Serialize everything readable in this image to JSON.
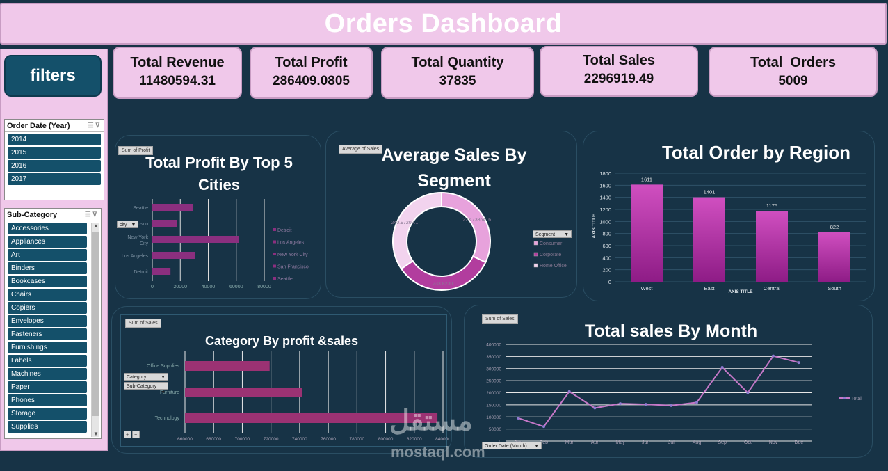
{
  "header": {
    "title": "Orders Dashboard"
  },
  "sidebar": {
    "filters_label": "filters",
    "year_slicer": {
      "title": "Order Date (Year)",
      "items": [
        "2014",
        "2015",
        "2016",
        "2017"
      ]
    },
    "subcat_slicer": {
      "title": "Sub-Category",
      "items": [
        "Accessories",
        "Appliances",
        "Art",
        "Binders",
        "Bookcases",
        "Chairs",
        "Copiers",
        "Envelopes",
        "Fasteners",
        "Furnishings",
        "Labels",
        "Machines",
        "Paper",
        "Phones",
        "Storage",
        "Supplies"
      ]
    }
  },
  "kpis": [
    {
      "label": "Total Revenue",
      "value": "11480594.31"
    },
    {
      "label": "Total Profit",
      "value": "286409.0805"
    },
    {
      "label": "Total Quantity",
      "value": "37835"
    },
    {
      "label": "Total Sales",
      "value": "2296919.49"
    },
    {
      "label": "Total  Orders",
      "value": "5009"
    }
  ],
  "panels": {
    "profit_cities": {
      "tag": "Sum of Profit",
      "title_l1": "Total Profit By Top 5",
      "title_l2": "Cities",
      "dropdown": "city"
    },
    "segment": {
      "tag": "Average of Sales",
      "title_l1": "Average Sales By",
      "title_l2": "Segment",
      "dropdown": "Segment"
    },
    "region": {
      "title": "Total Order by Region",
      "ylabel": "AXIS TITLE",
      "xlabel": "AXIS TITLE"
    },
    "category": {
      "tag": "Sum of Sales",
      "title": "Category By profit &sales",
      "dropdown1": "Category",
      "dropdown2": "Sub-Category"
    },
    "month": {
      "tag": "Sum of Sales",
      "title": "Total sales By Month",
      "dropdown": "Order Date (Month)"
    }
  },
  "chart_data": [
    {
      "type": "bar",
      "orientation": "horizontal",
      "categories": [
        "Seattle",
        "San Francisco",
        "New York City",
        "Los Angeles",
        "Detroit"
      ],
      "values": [
        29000,
        17500,
        62000,
        30500,
        13000
      ],
      "xlim": [
        0,
        80000
      ],
      "xticks": [
        "0",
        "20000",
        "40000",
        "60000",
        "80000"
      ],
      "legend": [
        "Detroit",
        "Los Angeles",
        "New York City",
        "San Francisco",
        "Seattle"
      ],
      "legend_position": "right",
      "color": "#8b2f7f"
    },
    {
      "type": "pie",
      "variant": "donut",
      "categories": [
        "Consumer",
        "Corporate",
        "Home Office"
      ],
      "values": [
        223.7336,
        233.823,
        240.9721
      ],
      "data_labels": [
        "223.7336416",
        "233.8230...",
        "240.97207..."
      ],
      "legend": [
        "Consumer",
        "Corporate",
        "Home Office"
      ],
      "legend_position": "right",
      "colors": [
        "#e7a2dc",
        "#b23d9e",
        "#f2d3ee"
      ]
    },
    {
      "type": "bar",
      "categories": [
        "West",
        "East",
        "Central",
        "South"
      ],
      "values": [
        1611,
        1401,
        1175,
        822
      ],
      "ylim": [
        0,
        1800
      ],
      "yticks": [
        "0",
        "200",
        "400",
        "600",
        "800",
        "1000",
        "1200",
        "1400",
        "1600",
        "1800"
      ],
      "xlabel": "AXIS TITLE",
      "ylabel": "AXIS TITLE",
      "color": "#b02e9f"
    },
    {
      "type": "bar",
      "orientation": "horizontal",
      "categories": [
        "Office Supplies",
        "Furniture",
        "Technology"
      ],
      "values": [
        719047,
        742000,
        836154
      ],
      "xlim": [
        660000,
        840000
      ],
      "xticks": [
        "660000",
        "680000",
        "700000",
        "720000",
        "740000",
        "760000",
        "780000",
        "800000",
        "820000",
        "840000"
      ],
      "color": "#9b3273"
    },
    {
      "type": "line",
      "categories": [
        "Jan",
        "Feb",
        "Mar",
        "Apr",
        "May",
        "Jun",
        "Jul",
        "Aug",
        "Sep",
        "Oct",
        "Nov",
        "Dec"
      ],
      "values": [
        95000,
        60000,
        205000,
        137000,
        155000,
        152000,
        147000,
        160000,
        305000,
        200000,
        352000,
        325000
      ],
      "ylim": [
        0,
        400000
      ],
      "yticks": [
        "0",
        "50000",
        "100000",
        "150000",
        "200000",
        "250000",
        "300000",
        "350000",
        "400000"
      ],
      "series_name": "Total",
      "legend_position": "right",
      "color": "#c678c8"
    }
  ],
  "watermark": {
    "arabic": "مستقل",
    "latin": "mostaql.com"
  }
}
